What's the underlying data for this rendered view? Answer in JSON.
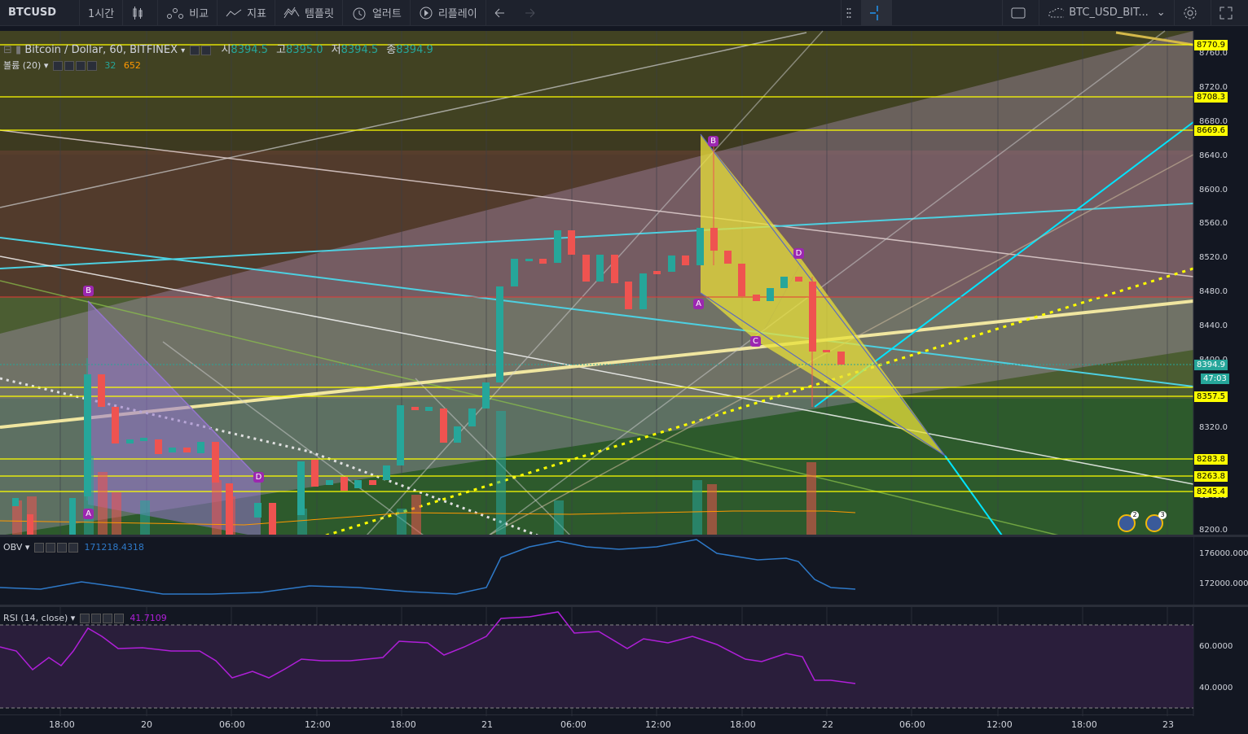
{
  "toolbar": {
    "symbol": "BTCUSD",
    "interval": "1시간",
    "compare_label": "비교",
    "indicators_label": "지표",
    "templates_label": "템플릿",
    "alert_label": "얼러트",
    "replay_label": "리플레이",
    "layout_name": "BTC_USD_BIT..."
  },
  "legend": {
    "title": "Bitcoin / Dollar, 60, BITFINEX",
    "open_label": "시",
    "open": "8394.5",
    "high_label": "고",
    "high": "8395.0",
    "low_label": "저",
    "low": "8394.5",
    "close_label": "종",
    "close": "8394.9",
    "volume_label": "볼륨 (20)",
    "volume_val1": "32",
    "volume_val2": "652"
  },
  "price_axis": [
    "8760.0",
    "8720.0",
    "8680.0",
    "8640.0",
    "8600.0",
    "8560.0",
    "8520.0",
    "8480.0",
    "8440.0",
    "8400.0",
    "8320.0",
    "8280.0",
    "8240.0",
    "8200.0"
  ],
  "price_tags": [
    {
      "label": "8770.9"
    },
    {
      "label": "8708.3"
    },
    {
      "label": "8669.6"
    },
    {
      "label": "8357.5"
    },
    {
      "label": "8283.8"
    },
    {
      "label": "8263.8"
    },
    {
      "label": "8245.4"
    }
  ],
  "last_price": "8394.9",
  "countdown": "47:03",
  "obv": {
    "label": "OBV",
    "value": "171218.4318",
    "axis": [
      "176000.0000",
      "172000.0000"
    ]
  },
  "rsi": {
    "label": "RSI (14, close)",
    "value": "41.7109",
    "axis": [
      "60.0000",
      "40.0000"
    ]
  },
  "time_axis": [
    "18:00",
    "20",
    "06:00",
    "12:00",
    "18:00",
    "21",
    "06:00",
    "12:00",
    "18:00",
    "22",
    "06:00",
    "12:00",
    "18:00",
    "23"
  ],
  "pattern_labels": [
    "B",
    "A",
    "D",
    "B",
    "A",
    "C",
    "D"
  ],
  "event_badges": [
    "2",
    "3"
  ],
  "colors": {
    "up": "#26a69a",
    "down": "#ef5350",
    "yellow": "#ffff00",
    "bg": "#131722"
  }
}
